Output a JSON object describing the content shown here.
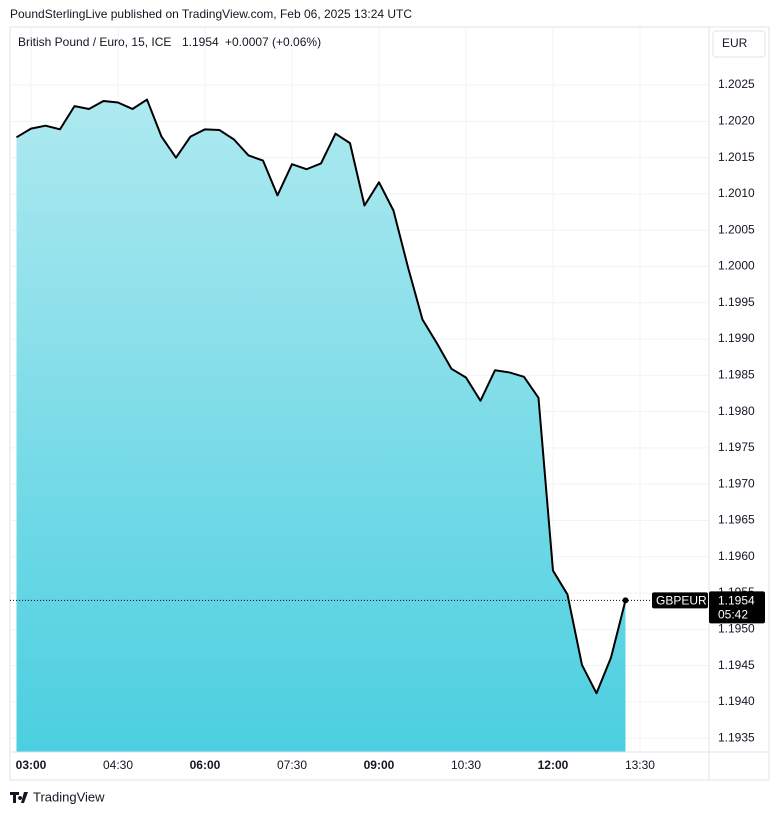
{
  "header": {
    "published": "PoundSterlingLive published on TradingView.com, Feb 06, 2025 13:24 UTC"
  },
  "footer": {
    "brand": "TradingView"
  },
  "chart_data": {
    "type": "area",
    "title": "British Pound / Euro, 15, ICE",
    "last_price": 1.1954,
    "change_label": "+0.0007 (+0.06%)",
    "symbol": "GBPEUR",
    "countdown": "05:42",
    "currency": "EUR",
    "line_color": "#000000",
    "fill_top": "#aee9f0",
    "fill_bottom": "#4bcfe0",
    "grid": true,
    "x": [
      2.75,
      3,
      3.25,
      3.5,
      3.75,
      4,
      4.25,
      4.5,
      4.75,
      5,
      5.25,
      5.5,
      5.75,
      6,
      6.25,
      6.5,
      6.75,
      7,
      7.25,
      7.5,
      7.75,
      8,
      8.25,
      8.5,
      8.75,
      9,
      9.25,
      9.5,
      9.75,
      10,
      10.25,
      10.5,
      10.75,
      11,
      11.25,
      11.5,
      11.75,
      12,
      12.25,
      12.5,
      12.75,
      13,
      13.25
    ],
    "values": [
      1.20178,
      1.2019,
      1.20194,
      1.20189,
      1.20221,
      1.20217,
      1.20228,
      1.20226,
      1.20217,
      1.2023,
      1.20179,
      1.2015,
      1.20179,
      1.20189,
      1.20188,
      1.20175,
      1.20153,
      1.20146,
      1.20098,
      1.20141,
      1.20134,
      1.20142,
      1.20183,
      1.2017,
      1.20084,
      1.20116,
      1.20077,
      1.19999,
      1.19927,
      1.19894,
      1.19859,
      1.19847,
      1.19815,
      1.19857,
      1.19854,
      1.19848,
      1.19819,
      1.19581,
      1.19548,
      1.19451,
      1.19412,
      1.19461,
      1.1954
    ],
    "xlim": [
      2.638,
      14.69
    ],
    "xticks": [
      {
        "value": 3,
        "label": "03:00"
      },
      {
        "value": 4.5,
        "label": "04:30"
      },
      {
        "value": 6,
        "label": "06:00"
      },
      {
        "value": 7.5,
        "label": "07:30"
      },
      {
        "value": 9,
        "label": "09:00"
      },
      {
        "value": 10.5,
        "label": "10:30"
      },
      {
        "value": 12,
        "label": "12:00"
      },
      {
        "value": 13.5,
        "label": "13:30"
      }
    ],
    "ylim": [
      1.19331,
      1.2033
    ],
    "yticks": [
      1.2025,
      {
        "value": 1.202,
        "label": "1.2020"
      },
      1.2015,
      {
        "value": 1.201,
        "label": "1.2010"
      },
      1.2005,
      {
        "value": 1.2,
        "label": "1.2000"
      },
      1.1995,
      {
        "value": 1.199,
        "label": "1.1990"
      },
      1.1985,
      {
        "value": 1.198,
        "label": "1.1980"
      },
      1.1975,
      {
        "value": 1.197,
        "label": "1.1970"
      },
      1.1965,
      {
        "value": 1.196,
        "label": "1.1960"
      },
      1.1955,
      {
        "value": 1.195,
        "label": "1.1950"
      },
      1.1945,
      {
        "value": 1.194,
        "label": "1.1940"
      },
      1.1935
    ]
  }
}
